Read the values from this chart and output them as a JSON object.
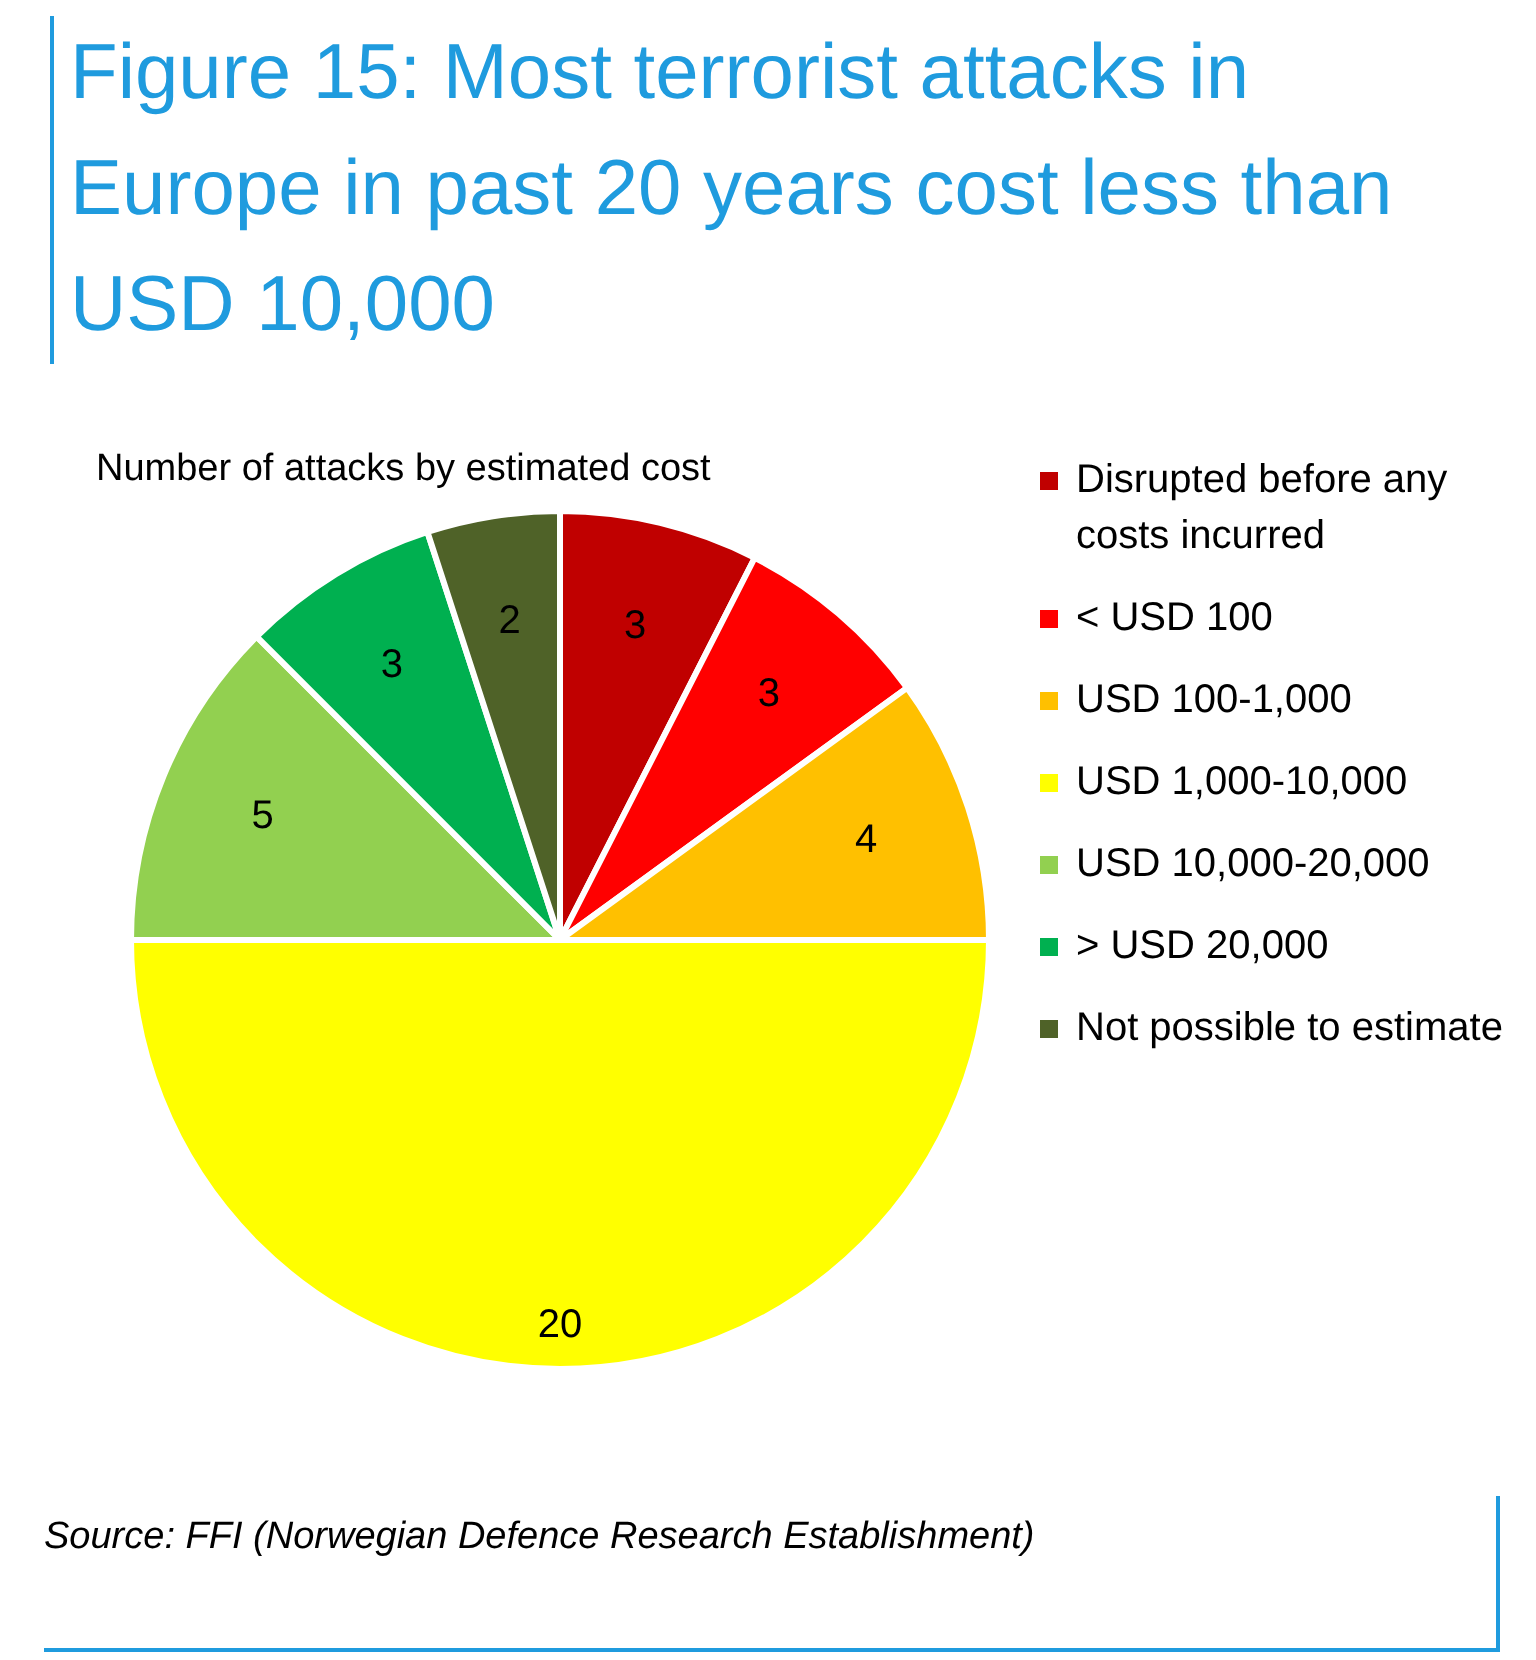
{
  "chart_data": {
    "type": "pie",
    "title": "Figure 15: Most terrorist attacks in Europe in past 20 years cost less than USD 10,000",
    "subtitle": "Number of attacks by estimated cost",
    "categories": [
      "Disrupted before any costs incurred",
      "< USD 100",
      "USD 100-1,000",
      "USD 1,000-10,000",
      "USD 10,000-20,000",
      "> USD 20,000",
      "Not possible to estimate"
    ],
    "values": [
      3,
      3,
      4,
      20,
      5,
      3,
      2
    ],
    "colors": [
      "#c00000",
      "#ff0000",
      "#ffc000",
      "#ffff00",
      "#92d050",
      "#00b050",
      "#4f6228"
    ],
    "data_labels": true,
    "legend": "right",
    "annotations": [
      "Source: FFI (Norwegian Defence Research Establishment)"
    ]
  }
}
